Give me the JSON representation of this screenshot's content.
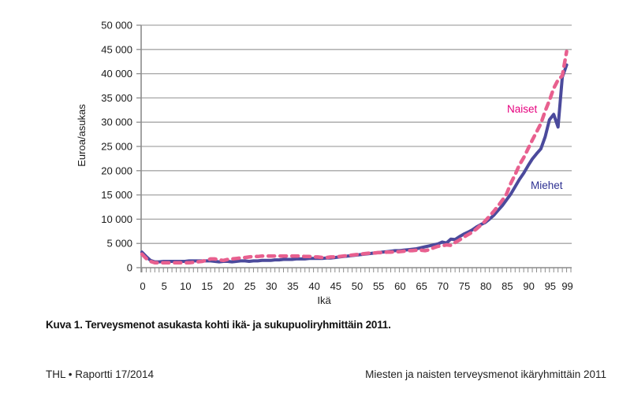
{
  "chart_data": {
    "type": "line",
    "title": "Kuva 1. Terveysmenot asukasta kohti ikä- ja sukupuoliryhmittäin 2011.",
    "xlabel": "Ikä",
    "ylabel": "Euroa/asukas",
    "xlim": [
      0,
      99
    ],
    "ylim": [
      0,
      50000
    ],
    "grid": "horizontal",
    "legend": "inline labels near lines (upper-right)",
    "yticks": [
      {
        "value": 0,
        "label": "0"
      },
      {
        "value": 5000,
        "label": "5 000"
      },
      {
        "value": 10000,
        "label": "10 000"
      },
      {
        "value": 15000,
        "label": "15 000"
      },
      {
        "value": 20000,
        "label": "20 000"
      },
      {
        "value": 25000,
        "label": "25 000"
      },
      {
        "value": 30000,
        "label": "30 000"
      },
      {
        "value": 35000,
        "label": "35 000"
      },
      {
        "value": 40000,
        "label": "40 000"
      },
      {
        "value": 45000,
        "label": "45 000"
      },
      {
        "value": 50000,
        "label": "50 000"
      }
    ],
    "xticks": [
      {
        "value": 0,
        "label": "0"
      },
      {
        "value": 5,
        "label": "5"
      },
      {
        "value": 10,
        "label": "10"
      },
      {
        "value": 15,
        "label": "15"
      },
      {
        "value": 20,
        "label": "20"
      },
      {
        "value": 25,
        "label": "25"
      },
      {
        "value": 30,
        "label": "30"
      },
      {
        "value": 35,
        "label": "35"
      },
      {
        "value": 40,
        "label": "40"
      },
      {
        "value": 45,
        "label": "45"
      },
      {
        "value": 50,
        "label": "50"
      },
      {
        "value": 55,
        "label": "55"
      },
      {
        "value": 60,
        "label": "60"
      },
      {
        "value": 65,
        "label": "65"
      },
      {
        "value": 70,
        "label": "70"
      },
      {
        "value": 75,
        "label": "75"
      },
      {
        "value": 80,
        "label": "80"
      },
      {
        "value": 85,
        "label": "85"
      },
      {
        "value": 90,
        "label": "90"
      },
      {
        "value": 95,
        "label": "95"
      },
      {
        "value": 99,
        "label": "99"
      }
    ],
    "x": [
      0,
      1,
      2,
      3,
      4,
      5,
      6,
      7,
      8,
      9,
      10,
      11,
      12,
      13,
      14,
      15,
      16,
      17,
      18,
      19,
      20,
      21,
      22,
      23,
      24,
      25,
      26,
      27,
      28,
      29,
      30,
      31,
      32,
      33,
      34,
      35,
      36,
      37,
      38,
      39,
      40,
      41,
      42,
      43,
      44,
      45,
      46,
      47,
      48,
      49,
      50,
      51,
      52,
      53,
      54,
      55,
      56,
      57,
      58,
      59,
      60,
      61,
      62,
      63,
      64,
      65,
      66,
      67,
      68,
      69,
      70,
      71,
      72,
      73,
      74,
      75,
      76,
      77,
      78,
      79,
      80,
      81,
      82,
      83,
      84,
      85,
      86,
      87,
      88,
      89,
      90,
      91,
      92,
      93,
      94,
      95,
      96,
      97,
      98,
      99
    ],
    "series": [
      {
        "name": "Miehet",
        "color": "#4b4a9c",
        "style": "solid",
        "values": [
          3200,
          2300,
          1500,
          1200,
          1200,
          1300,
          1300,
          1300,
          1300,
          1300,
          1300,
          1400,
          1400,
          1400,
          1400,
          1400,
          1400,
          1300,
          1200,
          1300,
          1300,
          1200,
          1300,
          1400,
          1400,
          1300,
          1400,
          1400,
          1500,
          1500,
          1500,
          1600,
          1600,
          1700,
          1700,
          1700,
          1800,
          1800,
          1800,
          1900,
          1900,
          1900,
          1900,
          2000,
          2000,
          2100,
          2200,
          2300,
          2400,
          2500,
          2600,
          2700,
          2800,
          2900,
          3000,
          3100,
          3200,
          3300,
          3400,
          3500,
          3500,
          3600,
          3700,
          3800,
          3900,
          4100,
          4300,
          4500,
          4700,
          4900,
          5300,
          5100,
          5900,
          5800,
          6400,
          6900,
          7300,
          7800,
          8400,
          8900,
          9300,
          10000,
          10800,
          11800,
          12800,
          14000,
          15200,
          16700,
          18200,
          19500,
          21000,
          22400,
          23500,
          24500,
          27000,
          30500,
          31600,
          29000,
          39300,
          41800
        ]
      },
      {
        "name": "Naiset",
        "color": "#e8608f",
        "style": "dashed",
        "values": [
          2800,
          1900,
          1300,
          1000,
          1000,
          1000,
          1000,
          1000,
          1000,
          1000,
          1000,
          1000,
          1100,
          1200,
          1300,
          1500,
          1800,
          1800,
          1600,
          1500,
          1700,
          1800,
          1900,
          2000,
          2100,
          2200,
          2300,
          2300,
          2400,
          2400,
          2400,
          2400,
          2400,
          2400,
          2400,
          2400,
          2400,
          2400,
          2300,
          2300,
          2200,
          2200,
          2100,
          2100,
          2200,
          2200,
          2300,
          2400,
          2500,
          2600,
          2700,
          2800,
          2900,
          3000,
          3000,
          3100,
          3100,
          3200,
          3200,
          3300,
          3300,
          3400,
          3500,
          3500,
          3600,
          3600,
          3500,
          3700,
          4100,
          4400,
          4500,
          4700,
          4600,
          5200,
          5700,
          6300,
          6800,
          7300,
          8000,
          8800,
          9600,
          10600,
          11600,
          12700,
          13900,
          15200,
          17400,
          19200,
          21200,
          22700,
          24500,
          26300,
          28000,
          29700,
          32300,
          34500,
          37000,
          38700,
          39600,
          44600
        ]
      }
    ],
    "annotations": [
      {
        "text": "Naiset",
        "series": "Naiset",
        "color": "#e6007e"
      },
      {
        "text": "Miehet",
        "series": "Miehet",
        "color": "#2e3192"
      }
    ]
  },
  "footer": {
    "left": "THL • Raportti 17/2014",
    "right": "Miesten ja naisten terveysmenot ikäryhmittäin 2011"
  }
}
